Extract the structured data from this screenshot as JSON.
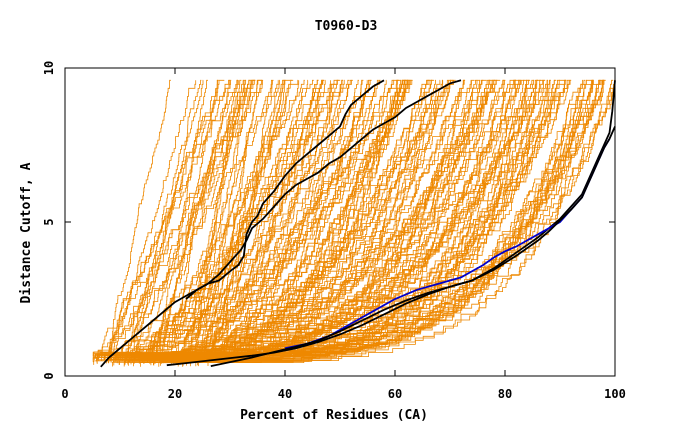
{
  "chart_data": {
    "type": "line",
    "title": "T0960-D3",
    "xlabel": "Percent of Residues (CA)",
    "ylabel": "Distance Cutoff, A",
    "xlim": [
      0,
      100
    ],
    "ylim": [
      0,
      10
    ],
    "xticks": [
      "0",
      "20",
      "40",
      "60",
      "80",
      "100"
    ],
    "yticks": [
      "0",
      "5",
      "10"
    ],
    "grid": false,
    "colors": {
      "background_models": "#ee8800",
      "highlight_black": "#000000",
      "highlight_blue": "#0000cc"
    },
    "background_model_count": 180,
    "series": [
      {
        "color": "#000000",
        "x": [
          6.5,
          8,
          10,
          12,
          14,
          16,
          18,
          20,
          22,
          24,
          26,
          28,
          30,
          31.5,
          32.5,
          33,
          34,
          35,
          36,
          38,
          40,
          42,
          44,
          46,
          48,
          50,
          51,
          52,
          54,
          56,
          58
        ],
        "y": [
          0.3,
          0.6,
          0.9,
          1.2,
          1.5,
          1.8,
          2.1,
          2.4,
          2.6,
          2.8,
          3.0,
          3.1,
          3.4,
          3.6,
          3.9,
          4.6,
          5.0,
          5.2,
          5.6,
          6.0,
          6.5,
          6.9,
          7.2,
          7.5,
          7.8,
          8.1,
          8.5,
          8.8,
          9.1,
          9.4,
          9.6
        ]
      },
      {
        "color": "#000000",
        "x": [
          22,
          24,
          26,
          28,
          30,
          32,
          33,
          34,
          36,
          38,
          40,
          42,
          44,
          46,
          48,
          50,
          52,
          54,
          56,
          58,
          60,
          62,
          64,
          66,
          68,
          70,
          72
        ],
        "y": [
          2.5,
          2.8,
          3.0,
          3.3,
          3.7,
          4.1,
          4.4,
          4.8,
          5.1,
          5.5,
          5.9,
          6.2,
          6.4,
          6.6,
          6.9,
          7.1,
          7.4,
          7.7,
          8.0,
          8.2,
          8.4,
          8.7,
          8.9,
          9.1,
          9.3,
          9.5,
          9.6
        ]
      },
      {
        "color": "#000000",
        "x": [
          18.5,
          22,
          26,
          30,
          34,
          38,
          42,
          46,
          50,
          54,
          58,
          62,
          66,
          70,
          74,
          78,
          82,
          86,
          88,
          90,
          92,
          94,
          95,
          96,
          97,
          98,
          99,
          99.5,
          100
        ],
        "y": [
          0.35,
          0.42,
          0.5,
          0.58,
          0.66,
          0.76,
          0.9,
          1.1,
          1.35,
          1.65,
          2.0,
          2.35,
          2.65,
          2.9,
          3.1,
          3.5,
          4.0,
          4.5,
          4.8,
          5.1,
          5.5,
          5.9,
          6.3,
          6.7,
          7.1,
          7.5,
          7.9,
          8.6,
          9.6
        ]
      },
      {
        "color": "#0000cc",
        "x": [
          40,
          44,
          48,
          52,
          56,
          60,
          64,
          68,
          72,
          76,
          78,
          80,
          82,
          84,
          86,
          88,
          90,
          92,
          94,
          95,
          96,
          97,
          98,
          99
        ],
        "y": [
          0.9,
          1.05,
          1.3,
          1.7,
          2.1,
          2.5,
          2.8,
          3.0,
          3.2,
          3.6,
          3.85,
          4.05,
          4.2,
          4.4,
          4.6,
          4.8,
          5.0,
          5.4,
          5.8,
          6.2,
          6.6,
          7.0,
          7.4,
          7.7
        ]
      },
      {
        "color": "#000000",
        "x": [
          26.5,
          30,
          34,
          38,
          42,
          46,
          50,
          54,
          58,
          62,
          66,
          70,
          74,
          78,
          82,
          86,
          88,
          90,
          92,
          94,
          95,
          96,
          97,
          98,
          99,
          100
        ],
        "y": [
          0.32,
          0.45,
          0.6,
          0.78,
          0.95,
          1.15,
          1.45,
          1.8,
          2.15,
          2.45,
          2.7,
          2.9,
          3.1,
          3.45,
          3.9,
          4.4,
          4.7,
          5.05,
          5.4,
          5.8,
          6.2,
          6.6,
          7.0,
          7.4,
          7.7,
          8.1
        ]
      }
    ]
  }
}
